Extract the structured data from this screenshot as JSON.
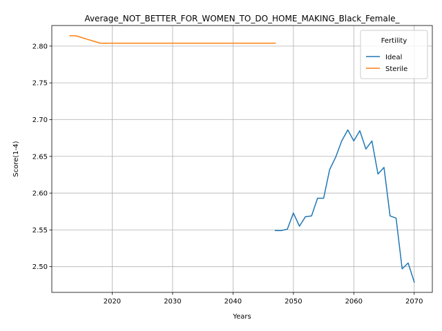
{
  "chart_data": {
    "type": "line",
    "title": "Average_NOT_BETTER_FOR_WOMEN_TO_DO_HOME_MAKING_Black_Female_",
    "xlabel": "Years",
    "ylabel": "Score(1-4)",
    "xlim": [
      2010,
      2073
    ],
    "ylim": [
      2.465,
      2.828
    ],
    "xticks": [
      2020,
      2030,
      2040,
      2050,
      2060,
      2070
    ],
    "yticks": [
      2.5,
      2.55,
      2.6,
      2.65,
      2.7,
      2.75,
      2.8
    ],
    "xtick_labels": [
      "2020",
      "2030",
      "2040",
      "2050",
      "2060",
      "2070"
    ],
    "ytick_labels": [
      "2.50",
      "2.55",
      "2.60",
      "2.65",
      "2.70",
      "2.75",
      "2.80"
    ],
    "grid": true,
    "legend": {
      "title": "Fertility",
      "position": "top-right"
    },
    "series": [
      {
        "name": "Ideal",
        "color": "#1f77b4",
        "x": [
          2047,
          2048,
          2049,
          2050,
          2051,
          2052,
          2053,
          2054,
          2055,
          2056,
          2057,
          2058,
          2059,
          2060,
          2061,
          2062,
          2063,
          2064,
          2065,
          2066,
          2067,
          2068,
          2069,
          2070
        ],
        "y": [
          2.549,
          2.549,
          2.551,
          2.573,
          2.555,
          2.568,
          2.569,
          2.593,
          2.593,
          2.632,
          2.649,
          2.671,
          2.686,
          2.671,
          2.685,
          2.66,
          2.671,
          2.626,
          2.635,
          2.569,
          2.566,
          2.497,
          2.505,
          2.479
        ]
      },
      {
        "name": "Sterile",
        "color": "#ff7f0e",
        "x": [
          2013,
          2014,
          2015,
          2016,
          2017,
          2018,
          2020,
          2025,
          2030,
          2035,
          2040,
          2045,
          2047
        ],
        "y": [
          2.814,
          2.814,
          2.8115,
          2.809,
          2.8065,
          2.804,
          2.804,
          2.804,
          2.804,
          2.804,
          2.804,
          2.804,
          2.804
        ]
      }
    ]
  }
}
